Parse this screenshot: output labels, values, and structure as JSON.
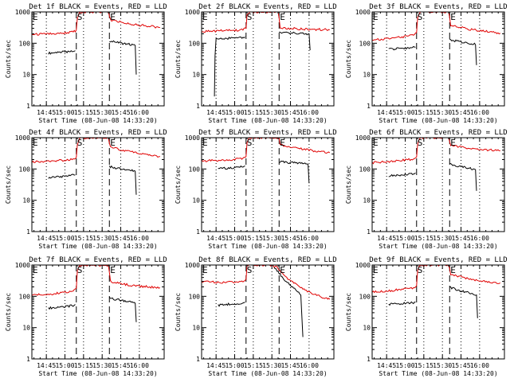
{
  "chart_data": {
    "type": "line",
    "layout": {
      "rows": 3,
      "cols": 3
    },
    "time_unit": "seconds since start time",
    "shared": {
      "title_suffix": " BLACK = Events, RED = LLD",
      "xlabel": "Start Time (08-Jun-08 14:33:20)",
      "ylabel": "Counts/sec",
      "yscale": "log",
      "ylim": [
        1,
        1000
      ],
      "yticks": [
        1,
        10,
        100,
        1000
      ],
      "ytick_labels": [
        "1",
        "10",
        "100",
        "1000"
      ],
      "xlim": [
        0,
        6400
      ],
      "xticks": [
        700,
        1600,
        2500,
        3400,
        4300,
        5200
      ],
      "xtick_labels": [
        "14:45",
        "15:00",
        "15:15",
        "15:30",
        "15:45",
        "16:00"
      ],
      "dotted_x": [
        700,
        1600,
        2500,
        3400,
        4300,
        5200
      ],
      "dashed_x": [
        2150,
        3750
      ],
      "markers": [
        {
          "label": "E",
          "x": 0
        },
        {
          "label": "S",
          "x": 2150
        },
        {
          "label": "E",
          "x": 3750
        }
      ]
    },
    "panels": [
      {
        "title": "Det 1f",
        "series": [
          {
            "name": "Events",
            "color": "#000000",
            "segments": [
              {
                "x": [
                  800,
                  1100,
                  1400,
                  1700,
                  1950,
                  2100
                ],
                "y": [
                  48,
                  50,
                  52,
                  53,
                  55,
                  58
                ]
              },
              {
                "x": [
                  3750,
                  4000,
                  4300,
                  4600,
                  4900,
                  5000,
                  5050
                ],
                "y": [
                  120,
                  110,
                  100,
                  95,
                  90,
                  85,
                  10
                ]
              }
            ]
          },
          {
            "name": "LLD",
            "color": "#e00000",
            "segments": [
              {
                "x": [
                  0,
                  500,
                  1000,
                  1500,
                  2000,
                  2150,
                  2200,
                  2300,
                  3700,
                  3750,
                  3800,
                  4200,
                  4700,
                  5200,
                  5700,
                  6200
                ],
                "y": [
                  190,
                  195,
                  200,
                  210,
                  230,
                  260,
                  600,
                  1000,
                  1000,
                  700,
                  560,
                  480,
                  420,
                  380,
                  350,
                  320
                ]
              }
            ]
          }
        ]
      },
      {
        "title": "Det 2f",
        "series": [
          {
            "name": "Events",
            "color": "#000000",
            "segments": [
              {
                "x": [
                  620,
                  650,
                  700,
                  1100,
                  1500,
                  1900,
                  2100
                ],
                "y": [
                  2,
                  40,
                  135,
                  140,
                  145,
                  150,
                  160
                ]
              },
              {
                "x": [
                  3750,
                  4100,
                  4500,
                  4900,
                  5200,
                  5250
                ],
                "y": [
                  220,
                  215,
                  210,
                  205,
                  200,
                  60
                ]
              }
            ]
          },
          {
            "name": "LLD",
            "color": "#e00000",
            "segments": [
              {
                "x": [
                  0,
                  500,
                  1000,
                  1500,
                  2000,
                  2150,
                  2200,
                  2300,
                  3700,
                  3750,
                  3800,
                  4200,
                  4700,
                  5200,
                  5700,
                  6200
                ],
                "y": [
                  240,
                  245,
                  250,
                  255,
                  270,
                  300,
                  800,
                  1000,
                  1000,
                  600,
                  320,
                  300,
                  290,
                  280,
                  275,
                  270
                ]
              }
            ]
          }
        ]
      },
      {
        "title": "Det 3f",
        "series": [
          {
            "name": "Events",
            "color": "#000000",
            "segments": [
              {
                "x": [
                  800,
                  1100,
                  1400,
                  1700,
                  1950,
                  2100
                ],
                "y": [
                  65,
                  66,
                  68,
                  70,
                  72,
                  75
                ]
              },
              {
                "x": [
                  3750,
                  4000,
                  4300,
                  4600,
                  4900,
                  5000,
                  5050
                ],
                "y": [
                  130,
                  120,
                  110,
                  100,
                  95,
                  90,
                  20
                ]
              }
            ]
          },
          {
            "name": "LLD",
            "color": "#e00000",
            "segments": [
              {
                "x": [
                  0,
                  500,
                  1000,
                  1500,
                  2000,
                  2150,
                  2200,
                  2300,
                  3700,
                  3750,
                  3800,
                  4200,
                  4700,
                  5200,
                  5700,
                  6200
                ],
                "y": [
                  130,
                  135,
                  145,
                  160,
                  180,
                  220,
                  600,
                  1000,
                  1000,
                  650,
                  380,
                  330,
                  280,
                  250,
                  230,
                  210
                ]
              }
            ]
          }
        ]
      },
      {
        "title": "Det 4f",
        "series": [
          {
            "name": "Events",
            "color": "#000000",
            "segments": [
              {
                "x": [
                  800,
                  1100,
                  1400,
                  1700,
                  1950,
                  2100
                ],
                "y": [
                  52,
                  54,
                  56,
                  58,
                  62,
                  65
                ]
              },
              {
                "x": [
                  3750,
                  4000,
                  4300,
                  4600,
                  4900,
                  5000,
                  5050
                ],
                "y": [
                  120,
                  110,
                  100,
                  95,
                  90,
                  85,
                  15
                ]
              }
            ]
          },
          {
            "name": "LLD",
            "color": "#e00000",
            "segments": [
              {
                "x": [
                  0,
                  500,
                  1000,
                  1500,
                  2000,
                  2150,
                  2200,
                  2300,
                  3700,
                  3750,
                  3800,
                  4200,
                  4700,
                  5200,
                  5700,
                  6200
                ],
                "y": [
                  170,
                  175,
                  180,
                  190,
                  210,
                  240,
                  600,
                  1000,
                  1000,
                  700,
                  520,
                  430,
                  360,
                  310,
                  280,
                  250
                ]
              }
            ]
          }
        ]
      },
      {
        "title": "Det 5f",
        "series": [
          {
            "name": "Events",
            "color": "#000000",
            "segments": [
              {
                "x": [
                  800,
                  1100,
                  1400,
                  1700,
                  1950,
                  2100
                ],
                "y": [
                  100,
                  105,
                  108,
                  112,
                  118,
                  125
                ]
              },
              {
                "x": [
                  3750,
                  4000,
                  4300,
                  4600,
                  4900,
                  5150,
                  5200
                ],
                "y": [
                  170,
                  165,
                  160,
                  155,
                  150,
                  140,
                  35
                ]
              }
            ]
          },
          {
            "name": "LLD",
            "color": "#e00000",
            "segments": [
              {
                "x": [
                  0,
                  500,
                  1000,
                  1500,
                  2000,
                  2150,
                  2200,
                  2300,
                  3700,
                  3750,
                  3800,
                  4200,
                  4700,
                  5200,
                  5700,
                  6200
                ],
                "y": [
                  180,
                  185,
                  190,
                  200,
                  220,
                  250,
                  700,
                  1000,
                  1000,
                  900,
                  600,
                  520,
                  450,
                  400,
                  360,
                  330
                ]
              }
            ]
          }
        ]
      },
      {
        "title": "Det 6f",
        "series": [
          {
            "name": "Events",
            "color": "#000000",
            "segments": [
              {
                "x": [
                  800,
                  1100,
                  1400,
                  1700,
                  1950,
                  2100
                ],
                "y": [
                  60,
                  62,
                  65,
                  67,
                  70,
                  75
                ]
              },
              {
                "x": [
                  3750,
                  4000,
                  4300,
                  4600,
                  4900,
                  5000,
                  5050
                ],
                "y": [
                  140,
                  130,
                  120,
                  110,
                  100,
                  95,
                  20
                ]
              }
            ]
          },
          {
            "name": "LLD",
            "color": "#e00000",
            "segments": [
              {
                "x": [
                  0,
                  500,
                  1000,
                  1500,
                  2000,
                  2150,
                  2200,
                  2300,
                  3700,
                  3750,
                  3800,
                  4200,
                  4700,
                  5200,
                  5700,
                  6200
                ],
                "y": [
                  160,
                  165,
                  175,
                  190,
                  210,
                  240,
                  650,
                  1000,
                  1000,
                  750,
                  600,
                  520,
                  460,
                  420,
                  400,
                  380
                ]
              }
            ]
          }
        ]
      },
      {
        "title": "Det 7f",
        "series": [
          {
            "name": "Events",
            "color": "#000000",
            "segments": [
              {
                "x": [
                  800,
                  1100,
                  1400,
                  1700,
                  1950,
                  2100
                ],
                "y": [
                  42,
                  44,
                  46,
                  48,
                  50,
                  55
                ]
              },
              {
                "x": [
                  3750,
                  4000,
                  4300,
                  4600,
                  4900,
                  5000,
                  5050
                ],
                "y": [
                  90,
                  80,
                  75,
                  70,
                  65,
                  60,
                  15
                ]
              }
            ]
          },
          {
            "name": "LLD",
            "color": "#e00000",
            "segments": [
              {
                "x": [
                  0,
                  500,
                  1000,
                  1500,
                  2000,
                  2150,
                  2200,
                  2300,
                  3700,
                  3750,
                  3800,
                  4200,
                  4700,
                  5200,
                  5700,
                  6200
                ],
                "y": [
                  110,
                  115,
                  120,
                  130,
                  150,
                  180,
                  600,
                  1000,
                  1000,
                  550,
                  300,
                  260,
                  230,
                  210,
                  200,
                  190
                ]
              }
            ]
          }
        ]
      },
      {
        "title": "Det 8f",
        "series": [
          {
            "name": "Events",
            "color": "#000000",
            "segments": [
              {
                "x": [
                  800,
                  1100,
                  1400,
                  1700,
                  1950,
                  2100
                ],
                "y": [
                  52,
                  54,
                  56,
                  58,
                  60,
                  65
                ]
              },
              {
                "x": [
                  3400,
                  3700,
                  4000,
                  4300,
                  4600,
                  4800,
                  4900
                ],
                "y": [
                  1000,
                  600,
                  350,
                  220,
                  150,
                  110,
                  5
                ]
              }
            ]
          },
          {
            "name": "LLD",
            "color": "#e00000",
            "segments": [
              {
                "x": [
                  0,
                  500,
                  1000,
                  1500,
                  2000,
                  2150,
                  2200,
                  2300,
                  3400,
                  3700,
                  4000,
                  4400,
                  4900,
                  5400,
                  5900,
                  6200
                ],
                "y": [
                  300,
                  290,
                  280,
                  280,
                  300,
                  350,
                  1000,
                  1000,
                  1000,
                  800,
                  450,
                  280,
                  170,
                  120,
                  90,
                  80
                ]
              }
            ]
          }
        ]
      },
      {
        "title": "Det 9f",
        "series": [
          {
            "name": "Events",
            "color": "#000000",
            "segments": [
              {
                "x": [
                  800,
                  1100,
                  1400,
                  1700,
                  1950,
                  2100
                ],
                "y": [
                  55,
                  57,
                  58,
                  60,
                  62,
                  65
                ]
              },
              {
                "x": [
                  3750,
                  4000,
                  4300,
                  4600,
                  4900,
                  5050,
                  5100
                ],
                "y": [
                  200,
                  170,
                  150,
                  135,
                  120,
                  110,
                  20
                ]
              }
            ]
          },
          {
            "name": "LLD",
            "color": "#e00000",
            "segments": [
              {
                "x": [
                  0,
                  500,
                  1000,
                  1500,
                  2000,
                  2150,
                  2200,
                  2300,
                  3700,
                  3750,
                  3800,
                  4200,
                  4700,
                  5200,
                  5700,
                  6200
                ],
                "y": [
                  140,
                  145,
                  155,
                  170,
                  190,
                  220,
                  700,
                  1000,
                  1000,
                  800,
                  500,
                  430,
                  370,
                  320,
                  290,
                  270
                ]
              }
            ]
          }
        ]
      }
    ]
  }
}
